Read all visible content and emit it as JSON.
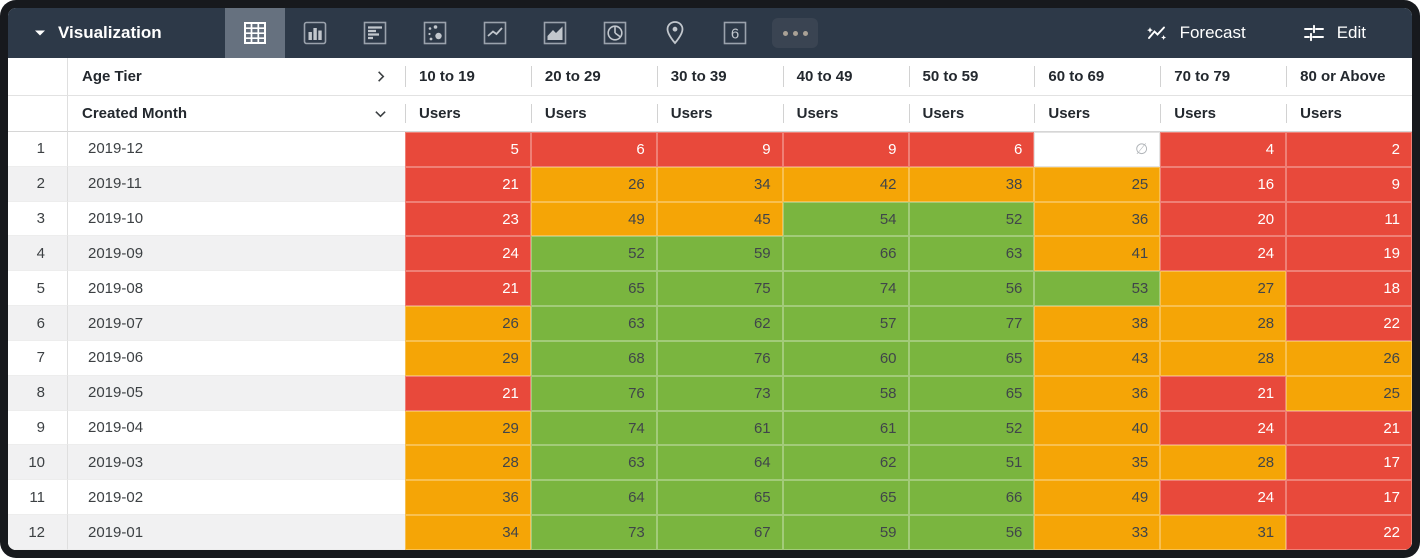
{
  "topbar": {
    "title": "Visualization",
    "viz_types": [
      "table",
      "bar",
      "bar-horizontal",
      "scatter",
      "line",
      "area",
      "pie",
      "map",
      "single-value",
      "more"
    ],
    "selected_viz": "table",
    "single_value_icon_text": "6",
    "forecast_label": "Forecast",
    "edit_label": "Edit"
  },
  "table": {
    "dimension_header": "Age Tier",
    "row_header": "Created Month",
    "measure_label": "Users",
    "null_symbol": "∅",
    "columns": [
      "10 to 19",
      "20 to 29",
      "30 to 39",
      "40 to 49",
      "50 to 59",
      "60 to 69",
      "70 to 79",
      "80 or Above"
    ],
    "rows": [
      {
        "index": 1,
        "month": "2019-12",
        "cells": [
          {
            "v": "5",
            "c": "red"
          },
          {
            "v": "6",
            "c": "red"
          },
          {
            "v": "9",
            "c": "red"
          },
          {
            "v": "9",
            "c": "red"
          },
          {
            "v": "6",
            "c": "red"
          },
          {
            "v": "",
            "c": "null"
          },
          {
            "v": "4",
            "c": "red"
          },
          {
            "v": "2",
            "c": "red"
          }
        ]
      },
      {
        "index": 2,
        "month": "2019-11",
        "cells": [
          {
            "v": "21",
            "c": "red"
          },
          {
            "v": "26",
            "c": "orange"
          },
          {
            "v": "34",
            "c": "orange"
          },
          {
            "v": "42",
            "c": "orange"
          },
          {
            "v": "38",
            "c": "orange"
          },
          {
            "v": "25",
            "c": "orange"
          },
          {
            "v": "16",
            "c": "red"
          },
          {
            "v": "9",
            "c": "red"
          }
        ]
      },
      {
        "index": 3,
        "month": "2019-10",
        "cells": [
          {
            "v": "23",
            "c": "red"
          },
          {
            "v": "49",
            "c": "orange"
          },
          {
            "v": "45",
            "c": "orange"
          },
          {
            "v": "54",
            "c": "green"
          },
          {
            "v": "52",
            "c": "green"
          },
          {
            "v": "36",
            "c": "orange"
          },
          {
            "v": "20",
            "c": "red"
          },
          {
            "v": "11",
            "c": "red"
          }
        ]
      },
      {
        "index": 4,
        "month": "2019-09",
        "cells": [
          {
            "v": "24",
            "c": "red"
          },
          {
            "v": "52",
            "c": "green"
          },
          {
            "v": "59",
            "c": "green"
          },
          {
            "v": "66",
            "c": "green"
          },
          {
            "v": "63",
            "c": "green"
          },
          {
            "v": "41",
            "c": "orange"
          },
          {
            "v": "24",
            "c": "red"
          },
          {
            "v": "19",
            "c": "red"
          }
        ]
      },
      {
        "index": 5,
        "month": "2019-08",
        "cells": [
          {
            "v": "21",
            "c": "red"
          },
          {
            "v": "65",
            "c": "green"
          },
          {
            "v": "75",
            "c": "green"
          },
          {
            "v": "74",
            "c": "green"
          },
          {
            "v": "56",
            "c": "green"
          },
          {
            "v": "53",
            "c": "green"
          },
          {
            "v": "27",
            "c": "orange"
          },
          {
            "v": "18",
            "c": "red"
          }
        ]
      },
      {
        "index": 6,
        "month": "2019-07",
        "cells": [
          {
            "v": "26",
            "c": "orange"
          },
          {
            "v": "63",
            "c": "green"
          },
          {
            "v": "62",
            "c": "green"
          },
          {
            "v": "57",
            "c": "green"
          },
          {
            "v": "77",
            "c": "green"
          },
          {
            "v": "38",
            "c": "orange"
          },
          {
            "v": "28",
            "c": "orange"
          },
          {
            "v": "22",
            "c": "red"
          }
        ]
      },
      {
        "index": 7,
        "month": "2019-06",
        "cells": [
          {
            "v": "29",
            "c": "orange"
          },
          {
            "v": "68",
            "c": "green"
          },
          {
            "v": "76",
            "c": "green"
          },
          {
            "v": "60",
            "c": "green"
          },
          {
            "v": "65",
            "c": "green"
          },
          {
            "v": "43",
            "c": "orange"
          },
          {
            "v": "28",
            "c": "orange"
          },
          {
            "v": "26",
            "c": "orange"
          }
        ]
      },
      {
        "index": 8,
        "month": "2019-05",
        "cells": [
          {
            "v": "21",
            "c": "red"
          },
          {
            "v": "76",
            "c": "green"
          },
          {
            "v": "73",
            "c": "green"
          },
          {
            "v": "58",
            "c": "green"
          },
          {
            "v": "65",
            "c": "green"
          },
          {
            "v": "36",
            "c": "orange"
          },
          {
            "v": "21",
            "c": "red"
          },
          {
            "v": "25",
            "c": "orange"
          }
        ]
      },
      {
        "index": 9,
        "month": "2019-04",
        "cells": [
          {
            "v": "29",
            "c": "orange"
          },
          {
            "v": "74",
            "c": "green"
          },
          {
            "v": "61",
            "c": "green"
          },
          {
            "v": "61",
            "c": "green"
          },
          {
            "v": "52",
            "c": "green"
          },
          {
            "v": "40",
            "c": "orange"
          },
          {
            "v": "24",
            "c": "red"
          },
          {
            "v": "21",
            "c": "red"
          }
        ]
      },
      {
        "index": 10,
        "month": "2019-03",
        "cells": [
          {
            "v": "28",
            "c": "orange"
          },
          {
            "v": "63",
            "c": "green"
          },
          {
            "v": "64",
            "c": "green"
          },
          {
            "v": "62",
            "c": "green"
          },
          {
            "v": "51",
            "c": "green"
          },
          {
            "v": "35",
            "c": "orange"
          },
          {
            "v": "28",
            "c": "orange"
          },
          {
            "v": "17",
            "c": "red"
          }
        ]
      },
      {
        "index": 11,
        "month": "2019-02",
        "cells": [
          {
            "v": "36",
            "c": "orange"
          },
          {
            "v": "64",
            "c": "green"
          },
          {
            "v": "65",
            "c": "green"
          },
          {
            "v": "65",
            "c": "green"
          },
          {
            "v": "66",
            "c": "green"
          },
          {
            "v": "49",
            "c": "orange"
          },
          {
            "v": "24",
            "c": "red"
          },
          {
            "v": "17",
            "c": "red"
          }
        ]
      },
      {
        "index": 12,
        "month": "2019-01",
        "cells": [
          {
            "v": "34",
            "c": "orange"
          },
          {
            "v": "73",
            "c": "green"
          },
          {
            "v": "67",
            "c": "green"
          },
          {
            "v": "59",
            "c": "green"
          },
          {
            "v": "56",
            "c": "green"
          },
          {
            "v": "33",
            "c": "orange"
          },
          {
            "v": "31",
            "c": "orange"
          },
          {
            "v": "22",
            "c": "red"
          }
        ]
      }
    ]
  },
  "colors": {
    "header_bar": "#2d3948",
    "selected_icon_bg": "#66717f",
    "cell_red": "#e8493b",
    "cell_orange": "#f5a506",
    "cell_green": "#7ab53f",
    "row_stripe": "#f1f1f2",
    "null_text": "#b0b4b8"
  }
}
